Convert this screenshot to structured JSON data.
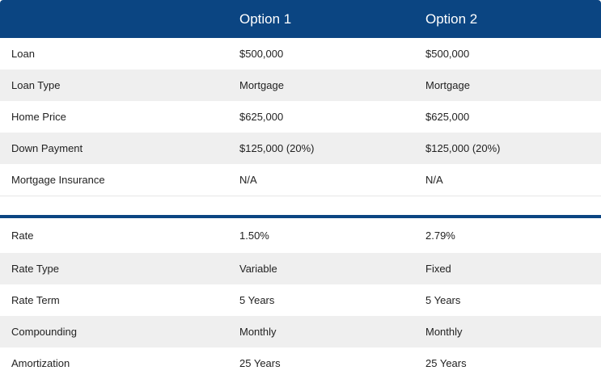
{
  "header": {
    "option1": "Option 1",
    "option2": "Option 2"
  },
  "sections": [
    {
      "rows": [
        {
          "label": "Loan",
          "option1": "$500,000",
          "option2": "$500,000"
        },
        {
          "label": "Loan Type",
          "option1": "Mortgage",
          "option2": "Mortgage"
        },
        {
          "label": "Home Price",
          "option1": "$625,000",
          "option2": "$625,000"
        },
        {
          "label": "Down Payment",
          "option1": "$125,000 (20%)",
          "option2": "$125,000 (20%)"
        },
        {
          "label": "Mortgage Insurance",
          "option1": "N/A",
          "option2": "N/A"
        }
      ]
    },
    {
      "rows": [
        {
          "label": "Rate",
          "option1": "1.50%",
          "option2": "2.79%"
        },
        {
          "label": "Rate Type",
          "option1": "Variable",
          "option2": "Fixed"
        },
        {
          "label": "Rate Term",
          "option1": "5 Years",
          "option2": "5 Years"
        },
        {
          "label": "Compounding",
          "option1": "Monthly",
          "option2": "Monthly"
        },
        {
          "label": "Amortization",
          "option1": "25 Years",
          "option2": "25 Years"
        }
      ]
    }
  ],
  "colors": {
    "header_bg": "#0b4582",
    "header_text": "#ffffff",
    "row_alt_bg": "#efefef"
  }
}
